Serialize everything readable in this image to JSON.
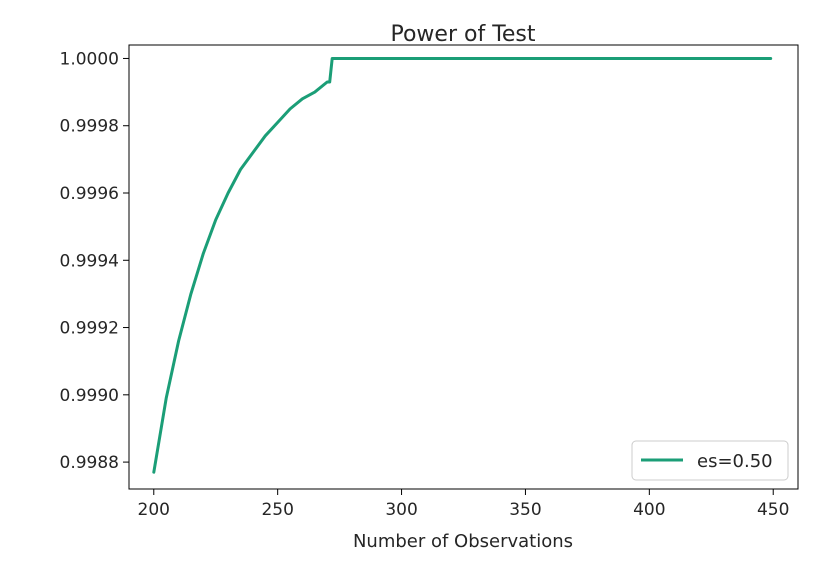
{
  "chart_data": {
    "type": "line",
    "title": "Power of Test",
    "xlabel": "Number of Observations",
    "ylabel": "",
    "xlim": [
      190,
      460
    ],
    "ylim": [
      0.99872,
      1.00004
    ],
    "x_ticks": [
      200,
      250,
      300,
      350,
      400,
      450
    ],
    "x_tick_labels": [
      "200",
      "250",
      "300",
      "350",
      "400",
      "450"
    ],
    "y_ticks": [
      0.9988,
      0.999,
      0.9992,
      0.9994,
      0.9996,
      0.9998,
      1.0
    ],
    "y_tick_labels": [
      "0.9988",
      "0.9990",
      "0.9992",
      "0.9994",
      "0.9996",
      "0.9998",
      "1.0000"
    ],
    "grid": false,
    "legend_position": "lower-right",
    "series": [
      {
        "name": "es=0.50",
        "color": "#1b9e77",
        "x": [
          200,
          205,
          210,
          215,
          220,
          225,
          230,
          235,
          240,
          245,
          250,
          255,
          260,
          265,
          270,
          271,
          272,
          280,
          300,
          350,
          400,
          449
        ],
        "y": [
          0.99877,
          0.99899,
          0.99916,
          0.9993,
          0.99942,
          0.99952,
          0.9996,
          0.99967,
          0.99972,
          0.99977,
          0.99981,
          0.99985,
          0.99988,
          0.9999,
          0.99993,
          0.99993,
          1.0,
          1.0,
          1.0,
          1.0,
          1.0,
          1.0
        ]
      }
    ]
  }
}
